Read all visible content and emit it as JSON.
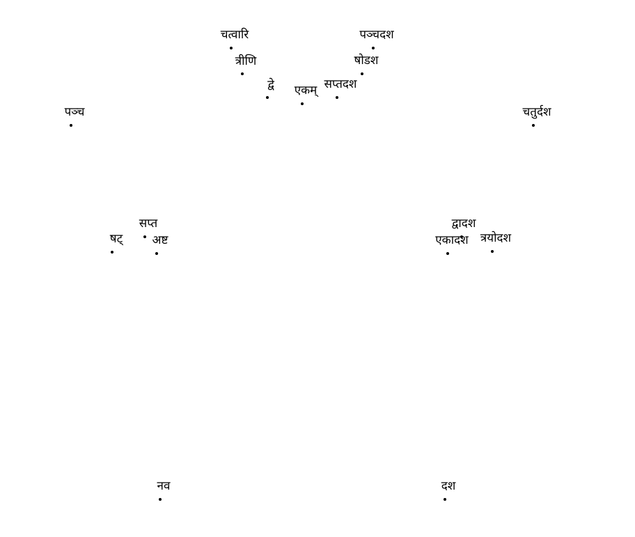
{
  "diagram": {
    "points": [
      {
        "id": "p1",
        "label": "एकम्"
      },
      {
        "id": "p2",
        "label": "द्वे"
      },
      {
        "id": "p3",
        "label": "त्रीणि"
      },
      {
        "id": "p4",
        "label": "चत्वारि"
      },
      {
        "id": "p5",
        "label": "पञ्च"
      },
      {
        "id": "p6",
        "label": "षट्"
      },
      {
        "id": "p7",
        "label": "सप्त"
      },
      {
        "id": "p8",
        "label": "अष्ट"
      },
      {
        "id": "p9",
        "label": "नव"
      },
      {
        "id": "p10",
        "label": "दश"
      },
      {
        "id": "p11",
        "label": "एकादश"
      },
      {
        "id": "p12",
        "label": "द्वादश"
      },
      {
        "id": "p13",
        "label": "त्रयोदश"
      },
      {
        "id": "p14",
        "label": "चतुर्दश"
      },
      {
        "id": "p15",
        "label": "पञ्चदश"
      },
      {
        "id": "p16",
        "label": "षोडश"
      },
      {
        "id": "p17",
        "label": "सप्तदश"
      }
    ]
  }
}
